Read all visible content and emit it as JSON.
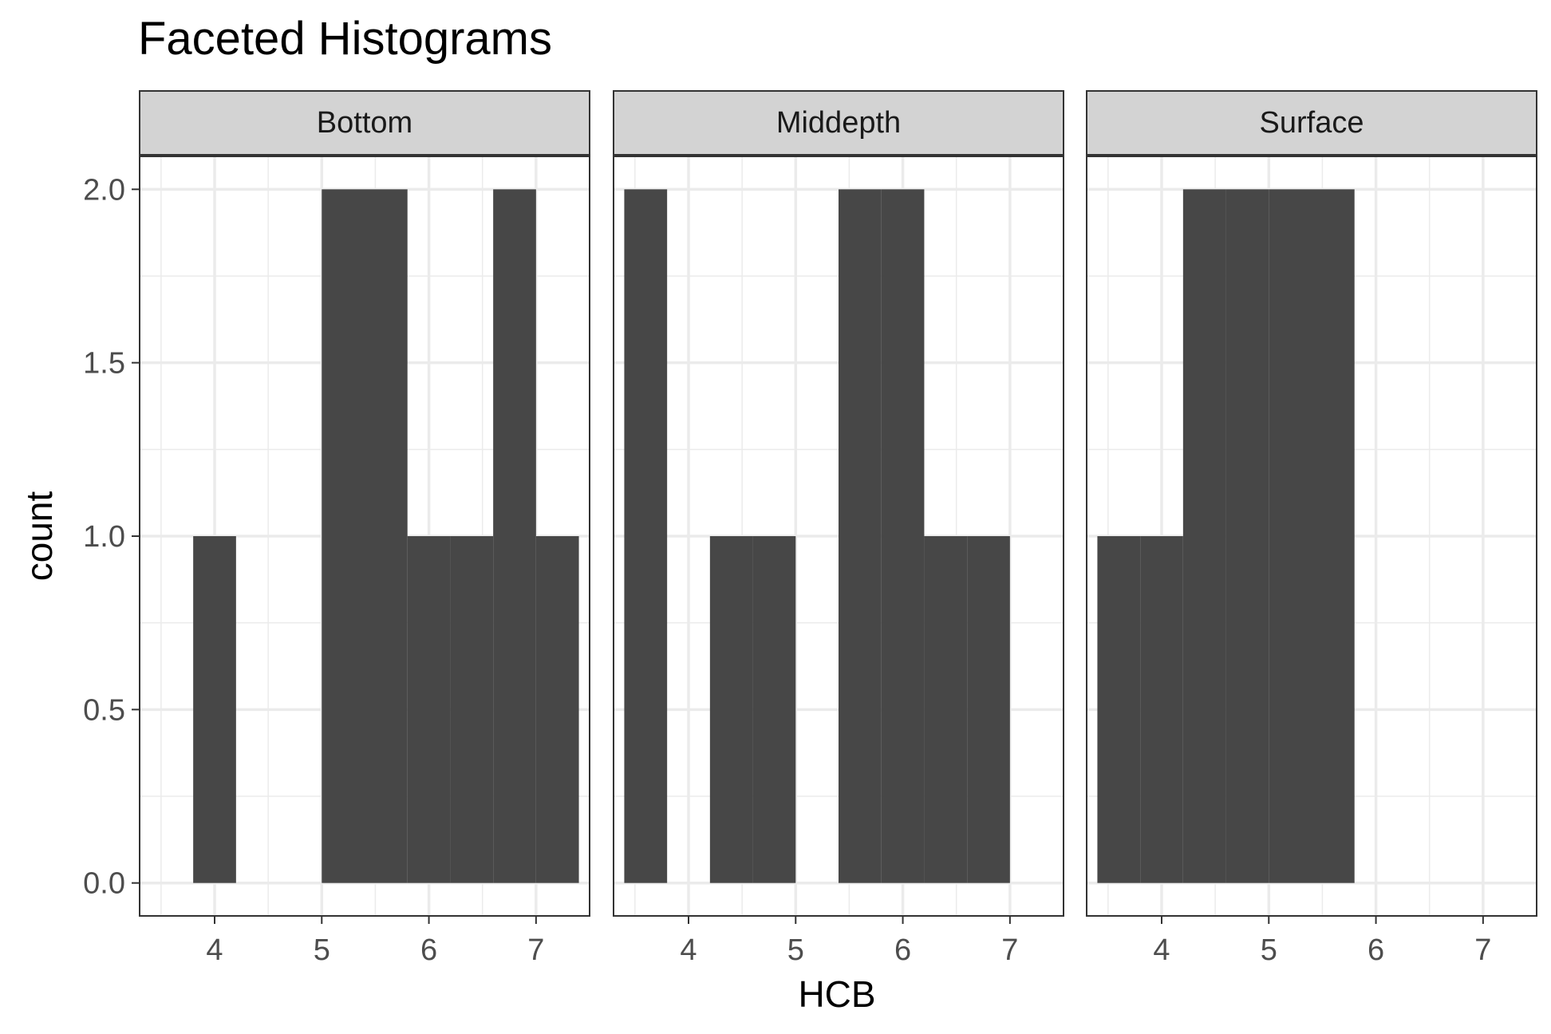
{
  "chart_data": {
    "type": "bar",
    "title": "Faceted Histograms",
    "xlabel": "HCB",
    "ylabel": "count",
    "xlim": [
      3.3,
      7.5
    ],
    "ylim": [
      -0.095,
      2.095
    ],
    "x_ticks": [
      "4",
      "5",
      "6",
      "7"
    ],
    "y_ticks": [
      "0.0",
      "0.5",
      "1.0",
      "1.5",
      "2.0"
    ],
    "grid": true,
    "bin_width": 0.4,
    "bar_color": "#474747",
    "strip_color": "#d3d3d3",
    "facets": [
      {
        "name": "Bottom",
        "bins": [
          {
            "x0": 3.8,
            "x1": 4.2,
            "count": 1
          },
          {
            "x0": 5.0,
            "x1": 5.4,
            "count": 2
          },
          {
            "x0": 5.4,
            "x1": 5.8,
            "count": 2
          },
          {
            "x0": 5.8,
            "x1": 6.2,
            "count": 1
          },
          {
            "x0": 6.2,
            "x1": 6.6,
            "count": 1
          },
          {
            "x0": 6.6,
            "x1": 7.0,
            "count": 2
          },
          {
            "x0": 7.0,
            "x1": 7.4,
            "count": 1
          }
        ]
      },
      {
        "name": "Middepth",
        "bins": [
          {
            "x0": 3.4,
            "x1": 3.8,
            "count": 2
          },
          {
            "x0": 4.2,
            "x1": 4.6,
            "count": 1
          },
          {
            "x0": 4.6,
            "x1": 5.0,
            "count": 1
          },
          {
            "x0": 5.4,
            "x1": 5.8,
            "count": 2
          },
          {
            "x0": 5.8,
            "x1": 6.2,
            "count": 2
          },
          {
            "x0": 6.2,
            "x1": 6.6,
            "count": 1
          },
          {
            "x0": 6.6,
            "x1": 7.0,
            "count": 1
          }
        ]
      },
      {
        "name": "Surface",
        "bins": [
          {
            "x0": 3.4,
            "x1": 3.8,
            "count": 1
          },
          {
            "x0": 3.8,
            "x1": 4.2,
            "count": 1
          },
          {
            "x0": 4.2,
            "x1": 4.6,
            "count": 2
          },
          {
            "x0": 4.6,
            "x1": 5.0,
            "count": 2
          },
          {
            "x0": 5.0,
            "x1": 5.4,
            "count": 2
          },
          {
            "x0": 5.4,
            "x1": 5.8,
            "count": 2
          }
        ]
      }
    ]
  }
}
